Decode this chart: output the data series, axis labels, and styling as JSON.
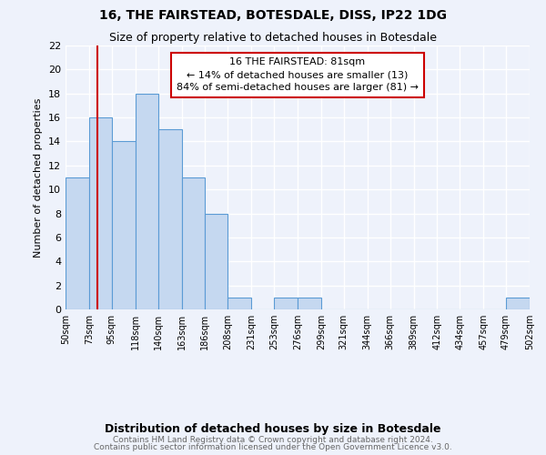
{
  "title": "16, THE FAIRSTEAD, BOTESDALE, DISS, IP22 1DG",
  "subtitle": "Size of property relative to detached houses in Botesdale",
  "xlabel": "Distribution of detached houses by size in Botesdale",
  "ylabel": "Number of detached properties",
  "bin_edges": [
    50,
    73,
    95,
    118,
    140,
    163,
    186,
    208,
    231,
    253,
    276,
    299,
    321,
    344,
    366,
    389,
    412,
    434,
    457,
    479,
    502
  ],
  "bar_heights": [
    11,
    16,
    14,
    18,
    15,
    11,
    8,
    1,
    0,
    1,
    1,
    0,
    0,
    0,
    0,
    0,
    0,
    0,
    0,
    1
  ],
  "bar_color": "#c5d8f0",
  "bar_edge_color": "#5b9bd5",
  "property_size": 81,
  "red_line_color": "#cc0000",
  "annotation_text": "16 THE FAIRSTEAD: 81sqm\n← 14% of detached houses are smaller (13)\n84% of semi-detached houses are larger (81) →",
  "annotation_box_color": "#ffffff",
  "annotation_box_edge_color": "#cc0000",
  "ylim": [
    0,
    22
  ],
  "yticks": [
    0,
    2,
    4,
    6,
    8,
    10,
    12,
    14,
    16,
    18,
    20,
    22
  ],
  "tick_labels": [
    "50sqm",
    "73sqm",
    "95sqm",
    "118sqm",
    "140sqm",
    "163sqm",
    "186sqm",
    "208sqm",
    "231sqm",
    "253sqm",
    "276sqm",
    "299sqm",
    "321sqm",
    "344sqm",
    "366sqm",
    "389sqm",
    "412sqm",
    "434sqm",
    "457sqm",
    "479sqm",
    "502sqm"
  ],
  "footer_line1": "Contains HM Land Registry data © Crown copyright and database right 2024.",
  "footer_line2": "Contains public sector information licensed under the Open Government Licence v3.0.",
  "background_color": "#eef2fb",
  "grid_color": "#ffffff"
}
